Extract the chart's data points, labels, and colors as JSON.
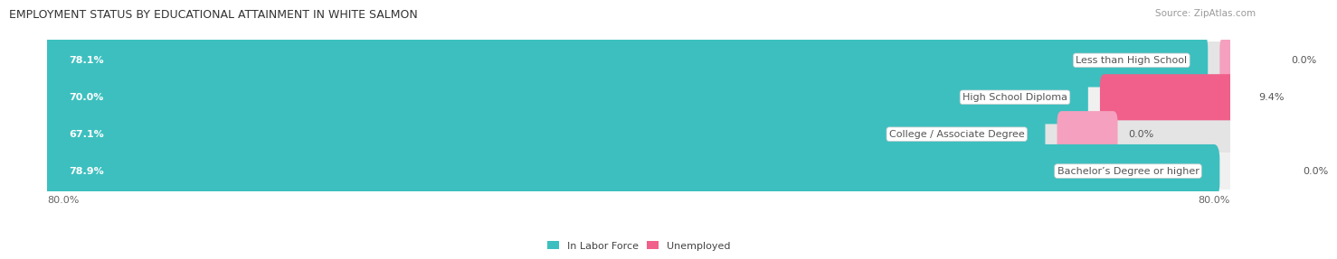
{
  "title": "EMPLOYMENT STATUS BY EDUCATIONAL ATTAINMENT IN WHITE SALMON",
  "source": "Source: ZipAtlas.com",
  "categories": [
    "Less than High School",
    "High School Diploma",
    "College / Associate Degree",
    "Bachelor’s Degree or higher"
  ],
  "labor_force": [
    78.1,
    70.0,
    67.1,
    78.9
  ],
  "unemployed": [
    0.0,
    9.4,
    0.0,
    0.0
  ],
  "labor_color": "#3dbfbf",
  "unemployed_color_strong": "#f0608a",
  "unemployed_color_light": "#f5a0be",
  "unemployed_colors": [
    "#f5a0be",
    "#f0608a",
    "#f5a0be",
    "#f5a0be"
  ],
  "row_bg_colors": [
    "#e4e4e4",
    "#f0f0f0",
    "#e4e4e4",
    "#f0f0f0"
  ],
  "xlim": 80.0,
  "title_fontsize": 9,
  "source_fontsize": 7.5,
  "bar_label_fontsize": 8,
  "cat_label_fontsize": 8,
  "tick_fontsize": 8,
  "legend_fontsize": 8,
  "background_color": "#ffffff"
}
